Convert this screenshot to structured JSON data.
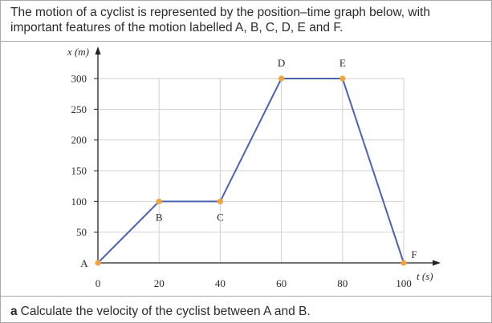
{
  "question": {
    "intro": "The motion of a cyclist is represented by the position–time graph below, with important features of the motion labelled A, B, C, D, E and F.",
    "part_letter": "a",
    "part_text": "Calculate the velocity of the cyclist between A and B."
  },
  "colors": {
    "line": "#4a63ad",
    "point": "#f2a33a",
    "grid": "#d2d2d2",
    "axis": "#222222"
  },
  "chart_data": {
    "type": "line",
    "xlabel": "t (s)",
    "ylabel": "x (m)",
    "xlim": [
      0,
      100
    ],
    "ylim": [
      0,
      300
    ],
    "x_ticks": [
      0,
      20,
      40,
      60,
      80,
      100
    ],
    "y_ticks": [
      50,
      100,
      150,
      200,
      250,
      300
    ],
    "grid": true,
    "series": [
      {
        "x": [
          0,
          20,
          40,
          60,
          80,
          100
        ],
        "y": [
          0,
          100,
          100,
          300,
          300,
          0
        ],
        "labels": [
          "A",
          "B",
          "C",
          "D",
          "E",
          "F"
        ]
      }
    ]
  }
}
